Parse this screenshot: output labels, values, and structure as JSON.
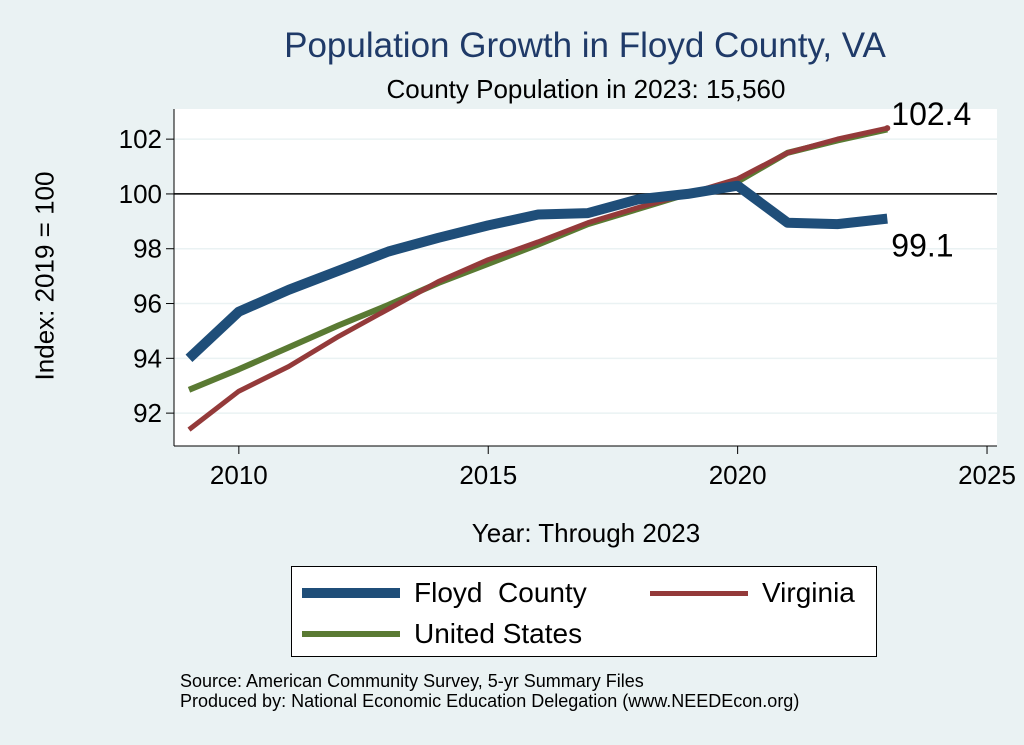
{
  "chart_data": {
    "type": "line",
    "title": "Population Growth in Floyd County, VA",
    "subtitle": "County Population in 2023: 15,560",
    "xlabel": "Year: Through 2023",
    "ylabel": "Index: 2019 = 100",
    "xlim": [
      2008.7,
      2025.2
    ],
    "ylim": [
      90.8,
      103.1
    ],
    "x_ticks": [
      2010,
      2015,
      2020,
      2025
    ],
    "y_ticks": [
      92,
      94,
      96,
      98,
      100,
      102
    ],
    "reference_line": 100,
    "grid": true,
    "legend_position": "bottom",
    "series": [
      {
        "name": "Floyd  County",
        "color": "#1f4e79",
        "width": "thick",
        "x": [
          2009,
          2010,
          2011,
          2012,
          2013,
          2014,
          2015,
          2016,
          2017,
          2018,
          2019,
          2020,
          2021,
          2022,
          2023
        ],
        "values": [
          94.0,
          95.7,
          96.5,
          97.2,
          97.9,
          98.4,
          98.85,
          99.25,
          99.3,
          99.8,
          100.0,
          100.3,
          98.95,
          98.9,
          99.1
        ]
      },
      {
        "name": "Virginia",
        "color": "#943a3a",
        "width": "thin",
        "x": [
          2009,
          2010,
          2011,
          2012,
          2013,
          2014,
          2015,
          2016,
          2017,
          2018,
          2019,
          2020,
          2021,
          2022,
          2023
        ],
        "values": [
          91.4,
          92.8,
          93.7,
          94.8,
          95.8,
          96.8,
          97.6,
          98.25,
          98.95,
          99.5,
          100.0,
          100.55,
          101.5,
          102.0,
          102.4
        ]
      },
      {
        "name": "United States",
        "color": "#5a7a33",
        "width": "medium",
        "x": [
          2009,
          2010,
          2011,
          2012,
          2013,
          2014,
          2015,
          2016,
          2017,
          2018,
          2019,
          2020,
          2021,
          2022,
          2023
        ],
        "values": [
          92.85,
          93.6,
          94.4,
          95.2,
          95.95,
          96.75,
          97.45,
          98.15,
          98.9,
          99.45,
          100.0,
          100.45,
          101.5,
          101.95,
          102.35
        ]
      }
    ],
    "annotations": [
      {
        "text": "102.4",
        "x": 2023,
        "y": 102.4
      },
      {
        "text": "99.1",
        "x": 2023,
        "y": 99.1
      }
    ]
  },
  "source_lines": {
    "line1": "Source: American Community Survey, 5-yr Summary Files",
    "line2": "Produced by: National Economic Education Delegation (www.NEEDEcon.org)"
  }
}
